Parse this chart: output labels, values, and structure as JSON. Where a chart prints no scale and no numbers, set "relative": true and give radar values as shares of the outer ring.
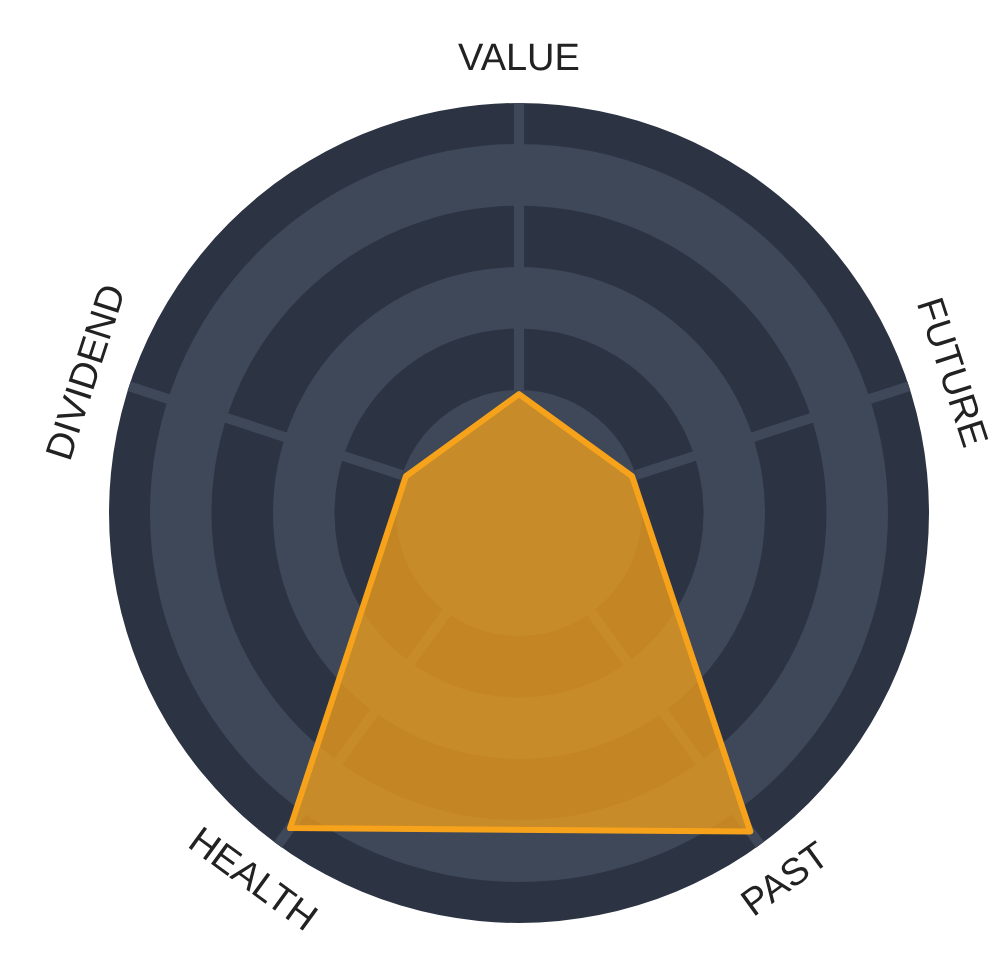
{
  "chart_data": {
    "type": "radar",
    "categories": [
      "VALUE",
      "FUTURE",
      "PAST",
      "HEALTH",
      "DIVIDEND"
    ],
    "relative": true,
    "grid": true,
    "series": [
      {
        "color": "#f7a21b",
        "values": [
          0.29,
          0.29,
          0.96,
          0.95,
          0.29
        ]
      }
    ]
  }
}
